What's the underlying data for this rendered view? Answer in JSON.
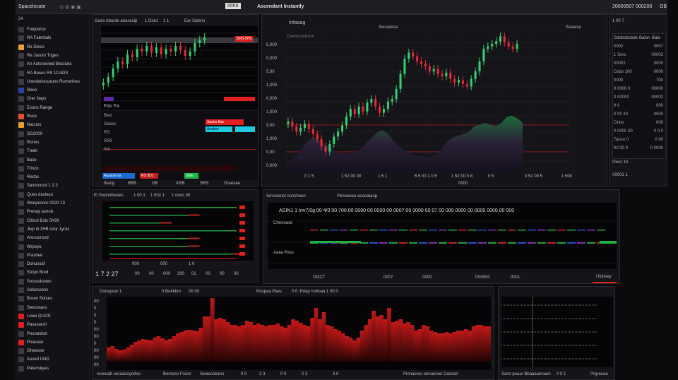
{
  "topbar": {
    "title": "Ascendant Instantly",
    "logo": "IIIIIIII",
    "left_label": "Spacelocate",
    "right_stat1": "20000507",
    "right_stat2": "000200",
    "right_menu": "OB"
  },
  "sidebar": {
    "header": "24",
    "items": [
      {
        "label": "Fuejoarce",
        "icon": "folder-icon"
      },
      {
        "label": "RA Falerbals",
        "icon": "file-icon"
      },
      {
        "label": "Re Dieco",
        "icon": "chart-icon",
        "color": "#e8a030"
      },
      {
        "label": "Re Jasoor Toges",
        "icon": "user-icon"
      },
      {
        "label": "An Autsrooried Becrana",
        "icon": "settings-icon"
      },
      {
        "label": "RA Bases RS 10 ADS",
        "icon": "layers-icon"
      },
      {
        "label": "Uxeobelsocauns Rumarines",
        "icon": "list-icon"
      },
      {
        "label": "Reeo",
        "icon": "square-icon",
        "color": "#3040a0"
      },
      {
        "label": "Grer Nays",
        "icon": "grid-icon"
      },
      {
        "label": "Exons Range",
        "icon": "calendar-icon"
      },
      {
        "label": "Ruse",
        "icon": "mail-icon",
        "color": "#e05030"
      },
      {
        "label": "Nacuos",
        "icon": "folder-icon",
        "color": "#e8a030"
      },
      {
        "label": "SG2000",
        "icon": "doc-icon"
      },
      {
        "label": "Runes",
        "icon": "box-icon"
      },
      {
        "label": "Treek",
        "icon": "tag-icon"
      },
      {
        "label": "Base",
        "icon": "globe-icon"
      },
      {
        "label": "Trinzo",
        "icon": "star-icon"
      },
      {
        "label": "Recbs",
        "icon": "list-icon"
      },
      {
        "label": "Savoroosd 1 2 3",
        "icon": "chart-icon"
      },
      {
        "label": "Ques dastasu",
        "icon": "grid-icon"
      },
      {
        "label": "Wonpesoro 0020 13",
        "icon": "grid-icon"
      },
      {
        "label": "Prenay asnob",
        "icon": "refresh-icon"
      },
      {
        "label": "Cl0ocl Bols 0N00",
        "icon": "doc-icon"
      },
      {
        "label": "Jlep di 2HB soor 1yras",
        "icon": "list-icon"
      },
      {
        "label": "Aresuorosd",
        "icon": "arrow-icon"
      },
      {
        "label": "Wrpoyo",
        "icon": "section-icon"
      },
      {
        "label": "Prashee",
        "icon": "file-icon"
      },
      {
        "label": "Donussaf",
        "icon": "file-icon"
      },
      {
        "label": "Sorpo Bred",
        "icon": "pin-icon"
      },
      {
        "label": "Snoosdoown",
        "icon": "cloud-icon"
      },
      {
        "label": "Sofarsoons",
        "icon": "x-icon"
      },
      {
        "label": "Broen Sotses",
        "icon": "chart-icon"
      },
      {
        "label": "Seesosars",
        "icon": "triangle-icon"
      },
      {
        "label": "Lowe QUOS",
        "icon": "alert-icon",
        "color": "#e02020"
      },
      {
        "label": "Pasesarsh",
        "icon": "alert-icon",
        "color": "#e02020"
      },
      {
        "label": "Posrandon",
        "icon": "pin-icon"
      },
      {
        "label": "Pnavase",
        "icon": "alert-icon",
        "color": "#e02020"
      },
      {
        "label": "Gheesoe",
        "icon": "lock-icon"
      },
      {
        "label": "Auxed UND",
        "icon": "doc-icon"
      },
      {
        "label": "Patenskyes",
        "icon": "chart-icon"
      }
    ]
  },
  "panel_a": {
    "title": "Gues Aboute anosesip",
    "tab1": "1 Doe1",
    "tab2": "1 1",
    "tab3": "Ear Salens",
    "header": "Fas Fa",
    "row_labels": [
      "Besi",
      "Gases",
      "RS",
      "RS0",
      "Sm"
    ],
    "buy_label": "Aosbso",
    "sell_label": "Sasoo Bas",
    "bottom": [
      "Ibang",
      "BBB",
      "GB",
      "ARB",
      "SRS",
      "Greesee"
    ],
    "ask_tag": "SRS 0PS",
    "buy_btn": "Aassoenss",
    "sell_btn": "RS 0D1",
    "green_btn": "GBE"
  },
  "main_chart": {
    "title": "Infaaag",
    "sub": "Deosisosbsoh",
    "corner": "Ssearso",
    "range_label": "Eesasesa",
    "axis_x": [
      "0 1 5",
      "1 52 00 00",
      "1 6 1",
      "6 5 00 1 0 5",
      "1 52 00 0 8",
      "0 5",
      "0 52 00 5",
      "1 500"
    ],
    "y_labels": [
      "5,000",
      "0,000",
      "5,00",
      "1,000",
      "0,000",
      "1,000",
      "9,00",
      "1,000",
      "0,00",
      "0,000"
    ],
    "footer": "0000"
  },
  "order_list": {
    "header": "1 00 7",
    "tabs": [
      "Sdobobsbob",
      "Balon",
      "Balo"
    ],
    "rows": [
      [
        "0002",
        "0007"
      ],
      [
        "1 Sors",
        "00002"
      ],
      [
        "00002",
        "0000"
      ],
      [
        "Osbs 100",
        "0000"
      ],
      [
        "0000",
        "700"
      ],
      [
        "0 0000 0",
        "00000"
      ],
      [
        "0 00000",
        "00002"
      ],
      [
        "0 0",
        "000"
      ],
      [
        "0 00 10",
        "0000"
      ],
      [
        "Onbs",
        "000"
      ],
      [
        "0 0000 00",
        "0 0 0"
      ],
      [
        "Taoso 0",
        "0 00"
      ],
      [
        "00 00 0",
        "0 0000"
      ]
    ],
    "footer": "Oess 10",
    "bottom": "00001 1"
  },
  "panel_c": {
    "title": "Ei Sreinnbwaes",
    "t2": "1 00 1",
    "t3": "1 002 1",
    "t4": "1 ooos 00",
    "price": "1 7 2 27",
    "foot": [
      "00",
      "00",
      "000",
      "300",
      "01",
      "00",
      "00",
      "00"
    ],
    "xaxis": [
      "000",
      "000",
      "1 0"
    ]
  },
  "panel_d": {
    "title": "Sevssenol nonsheen",
    "title2": "Penoeoeo aoaoaiaop",
    "ticker": "ASIN1 1 Inv7/0g 00 4/0 00 700 00 0000 00 0000 00 0007 00 0000 00 07 00 000 0000 00 0000 0000 00 000",
    "row1": "Cheooase",
    "row2": "Aaaa Pass",
    "footer": [
      "OOCT",
      "0007",
      "0000",
      "P00000",
      "0001"
    ],
    "btn": "Ulobsey"
  },
  "panel_e": {
    "title": "Donapoar 1",
    "t2": "0 Bo4kbur",
    "t3": "00 00",
    "t4": "Poopaa Paes",
    "t5": "0 0: Pdap rooloaa 1 00 0",
    "foot": [
      "rooooah ooraaooyodoo",
      "Bornaso Fraon",
      "Swaosokano",
      "0 0",
      "2 3",
      "0 0",
      "0 3",
      "3 0",
      "Pinnaoros onnaooon Daosan"
    ],
    "y_labels": [
      "00",
      "0",
      "0",
      "0",
      "00",
      "00",
      "0",
      "00",
      "00",
      "00"
    ]
  },
  "panel_f": {
    "foot": [
      "Sanz poaar Bbaaaaonaan",
      "0 0 1",
      "Prgraoaa"
    ]
  },
  "series": {
    "main_closes": [
      100,
      96,
      92,
      95,
      98,
      94,
      90,
      86,
      80,
      76,
      82,
      88,
      92,
      97,
      104,
      110,
      106,
      112,
      108,
      115,
      118,
      112,
      107,
      110,
      116,
      118,
      126,
      138,
      150,
      155,
      152,
      148,
      146,
      144,
      140,
      142,
      138,
      136,
      139,
      134,
      131,
      133,
      130,
      128,
      134,
      140,
      148,
      158,
      160,
      162,
      164,
      168,
      163,
      160,
      158,
      162
    ],
    "mini_closes": [
      40,
      44,
      50,
      55,
      53,
      60,
      58,
      64,
      62,
      66,
      61,
      65,
      60,
      64,
      62,
      66,
      63,
      59,
      62,
      68,
      70,
      72
    ],
    "volume_area": [
      5,
      8,
      14,
      22,
      30,
      34,
      32,
      28,
      24,
      20,
      18,
      17,
      16,
      18,
      22,
      28,
      34,
      40,
      42,
      38,
      30,
      24,
      20,
      17,
      15,
      14,
      13,
      13,
      16,
      22,
      30,
      34,
      36,
      38,
      40,
      46,
      48,
      50,
      48,
      46,
      50,
      56,
      58,
      55,
      50
    ],
    "histogram": [
      20,
      22,
      18,
      16,
      17,
      20,
      24,
      28,
      30,
      32,
      31,
      30,
      34,
      36,
      33,
      30,
      32,
      36,
      40,
      42,
      44,
      45,
      44,
      43,
      48,
      64,
      64,
      90,
      60,
      62,
      60,
      56,
      52,
      52,
      50,
      52,
      58,
      56,
      52,
      54,
      52,
      50,
      52,
      52,
      54,
      50,
      48,
      52,
      60,
      58,
      55,
      52,
      50,
      62,
      76,
      60,
      70,
      52,
      50,
      46,
      44,
      40,
      36,
      34,
      30,
      34,
      44,
      52,
      60,
      72,
      64,
      66,
      60,
      76,
      56,
      58,
      60,
      54,
      56,
      52,
      44,
      46,
      52,
      50,
      44,
      42,
      40,
      40,
      42,
      40,
      42,
      44,
      44,
      46,
      44,
      50,
      52,
      52,
      50,
      50
    ],
    "bars_green": [
      1,
      0.62,
      0.4,
      1,
      0.62,
      0.62,
      0.97
    ],
    "up_color": "#2fd472",
    "down_color": "#e8283a"
  }
}
